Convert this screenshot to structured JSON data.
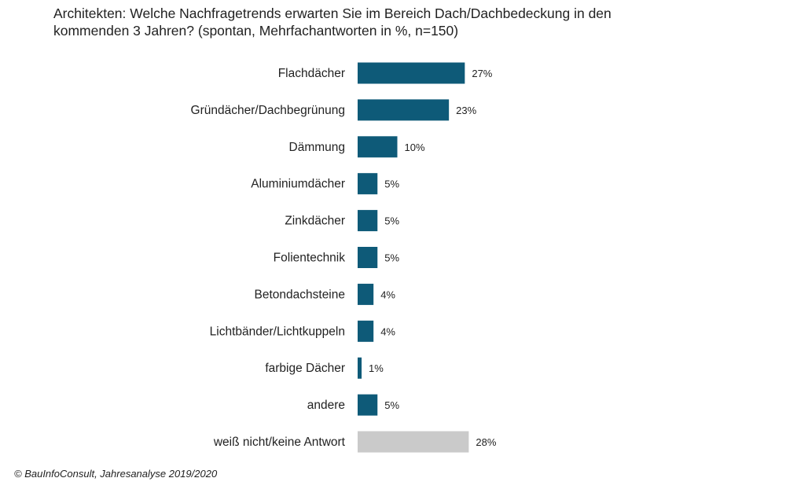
{
  "title": "Architekten:  Welche Nachfragetrends  erwarten Sie im Bereich Dach/Dachbedeckung  in den\nkommenden  3 Jahren? (spontan, Mehrfachantworten  in %, n=150)",
  "source": "© BauInfoConsult, Jahresanalyse 2019/2020",
  "colors": {
    "bar": "#0e5a78",
    "bar_no_answer": "#cacaca"
  },
  "chart_data": {
    "type": "bar",
    "orientation": "horizontal",
    "unit": "%",
    "categories": [
      "Flachdächer",
      "Gründächer/Dachbegrünung",
      "Dämmung",
      "Aluminiumdächer",
      "Zinkdächer",
      "Folientechnik",
      "Betondachsteine",
      "Lichtbänder/Lichtkuppeln",
      "farbige Dächer",
      "andere",
      "weiß nicht/keine Antwort"
    ],
    "values": [
      27,
      23,
      10,
      5,
      5,
      5,
      4,
      4,
      1,
      5,
      28
    ],
    "value_labels": [
      "27%",
      "23%",
      "10%",
      "5%",
      "5%",
      "5%",
      "4%",
      "4%",
      "1%",
      "5%",
      "28%"
    ],
    "highlight_last_gray": true,
    "gridlines": false,
    "legend": "none",
    "xlim": [
      0,
      28
    ]
  }
}
